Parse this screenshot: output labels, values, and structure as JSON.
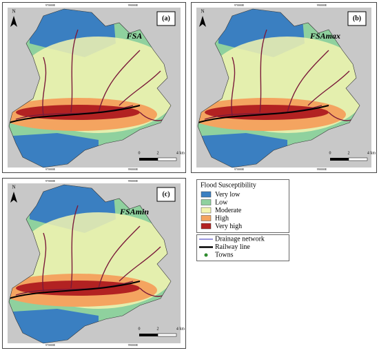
{
  "panels": [
    {
      "label": "(a)",
      "title": "FSA",
      "north": "N",
      "coords": [
        "970000E",
        "990000E"
      ],
      "scale": [
        "0",
        "2",
        "4 km"
      ]
    },
    {
      "label": "(b)",
      "title": "FSAmax",
      "north": "N",
      "coords": [
        "970000E",
        "990000E"
      ],
      "scale": [
        "0",
        "2",
        "4 km"
      ]
    },
    {
      "label": "(c)",
      "title": "FSAmin",
      "north": "N",
      "coords": [
        "970000E",
        "990000E"
      ],
      "scale": [
        "0",
        "2",
        "4 km"
      ]
    }
  ],
  "legend": {
    "title": "Flood Susceptibility",
    "classes": [
      {
        "label": "Very low",
        "color": "#3a7fc1"
      },
      {
        "label": "Low",
        "color": "#8fd19e"
      },
      {
        "label": "Moderate",
        "color": "#f3f5b0"
      },
      {
        "label": "High",
        "color": "#f4a460"
      },
      {
        "label": "Very high",
        "color": "#b22222"
      }
    ],
    "lines": [
      {
        "label": "Drainage network",
        "color": "#5a55c8",
        "kind": "line"
      },
      {
        "label": "Railway line",
        "color": "#000000",
        "kind": "thick"
      },
      {
        "label": "Towns",
        "color": "#2e8b2e",
        "kind": "dot"
      }
    ]
  }
}
